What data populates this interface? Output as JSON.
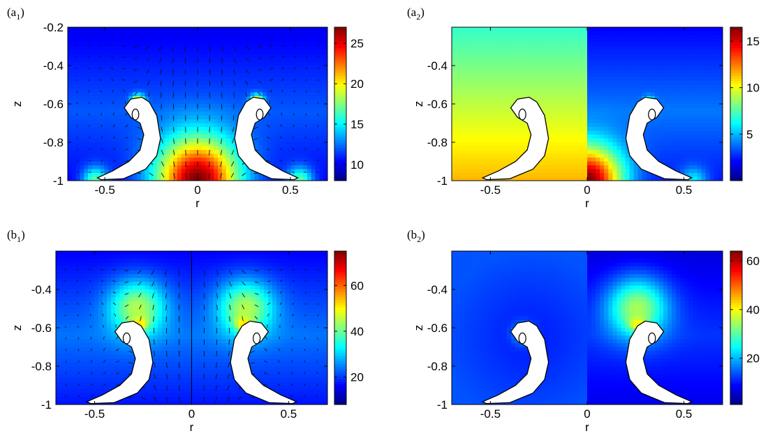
{
  "colormap": "jet",
  "chart_data": [
    {
      "type": "heatmap",
      "panel": "(a1)",
      "panel_main": "a",
      "panel_sub": "1",
      "xlabel": "r",
      "ylabel": "z",
      "xlim": [
        -0.7,
        0.7
      ],
      "ylim": [
        -1,
        -0.2
      ],
      "xticks": [
        -0.5,
        0,
        0.5
      ],
      "yticks": [
        -1,
        -0.8,
        -0.6,
        -0.4,
        -0.2
      ],
      "colorbar": {
        "min": 8,
        "max": 27,
        "ticks": [
          10,
          15,
          20,
          25
        ]
      },
      "field": "symmetric",
      "quiver": true,
      "split": false,
      "hotspots": [
        {
          "r": 0,
          "z": -1,
          "value": 27,
          "spread": 0.16
        },
        {
          "r": -0.32,
          "z": -0.59,
          "value": 22,
          "spread": 0.025
        },
        {
          "r": 0.32,
          "z": -0.59,
          "value": 22,
          "spread": 0.025
        },
        {
          "r": -0.55,
          "z": -1,
          "value": 17,
          "spread": 0.05
        },
        {
          "r": 0.55,
          "z": -1,
          "value": 17,
          "spread": 0.05
        }
      ],
      "background": {
        "base": 12,
        "low": 9
      }
    },
    {
      "type": "heatmap",
      "panel": "(a2)",
      "panel_main": "a",
      "panel_sub": "2",
      "xlabel": "r",
      "ylabel": "z",
      "xlim": [
        -0.7,
        0.7
      ],
      "ylim": [
        -1,
        -0.2
      ],
      "xticks": [
        -0.5,
        0,
        0.5
      ],
      "yticks": [
        -1,
        -0.8,
        -0.6,
        -0.4
      ],
      "colorbar": {
        "min": 0,
        "max": 16.5,
        "ticks": [
          5,
          10,
          15
        ]
      },
      "field": "split",
      "quiver": false,
      "split": true,
      "left_half": {
        "top": 7,
        "bottom": 11.5
      },
      "hotspots": [
        {
          "r": 0,
          "z": -1,
          "value": 16.5,
          "spread": 0.13
        },
        {
          "r": 0.55,
          "z": -1,
          "value": 6,
          "spread": 0.05
        },
        {
          "r": 0.32,
          "z": -0.59,
          "value": 8,
          "spread": 0.02
        }
      ],
      "background": {
        "base": 4,
        "low": 1
      }
    },
    {
      "type": "heatmap",
      "panel": "(b1)",
      "panel_main": "b",
      "panel_sub": "1",
      "xlabel": "r",
      "ylabel": "z",
      "xlim": [
        -0.7,
        0.7
      ],
      "ylim": [
        -1,
        -0.2
      ],
      "xticks": [
        -0.5,
        0,
        0.5
      ],
      "yticks": [
        -1,
        -0.8,
        -0.6,
        -0.4
      ],
      "colorbar": {
        "min": 8,
        "max": 75,
        "ticks": [
          20,
          40,
          60
        ]
      },
      "field": "symmetric",
      "quiver": true,
      "split": false,
      "centerline": true,
      "hotspots": [
        {
          "r": -0.27,
          "z": -0.57,
          "value": 75,
          "spread": 0.03
        },
        {
          "r": 0.27,
          "z": -0.57,
          "value": 75,
          "spread": 0.03
        },
        {
          "r": -0.28,
          "z": -0.5,
          "value": 45,
          "spread": 0.1
        },
        {
          "r": 0.28,
          "z": -0.5,
          "value": 45,
          "spread": 0.1
        }
      ],
      "background": {
        "base": 24,
        "low": 12
      }
    },
    {
      "type": "heatmap",
      "panel": "(b2)",
      "panel_main": "b",
      "panel_sub": "2",
      "xlabel": "r",
      "ylabel": "z",
      "xlim": [
        -0.7,
        0.7
      ],
      "ylim": [
        -1,
        -0.2
      ],
      "xticks": [
        -0.5,
        0,
        0.5
      ],
      "yticks": [
        -1,
        -0.8,
        -0.6,
        -0.4
      ],
      "colorbar": {
        "min": 1,
        "max": 64,
        "ticks": [
          20,
          40,
          60
        ]
      },
      "field": "split",
      "quiver": false,
      "split": true,
      "left_half": {
        "top": 14,
        "bottom": 10
      },
      "hotspots": [
        {
          "r": 0.26,
          "z": -0.57,
          "value": 64,
          "spread": 0.03
        },
        {
          "r": 0.26,
          "z": -0.5,
          "value": 35,
          "spread": 0.11
        },
        {
          "r": -0.33,
          "z": -0.63,
          "value": 22,
          "spread": 0.04
        }
      ],
      "background": {
        "base": 12,
        "low": 4
      }
    }
  ]
}
